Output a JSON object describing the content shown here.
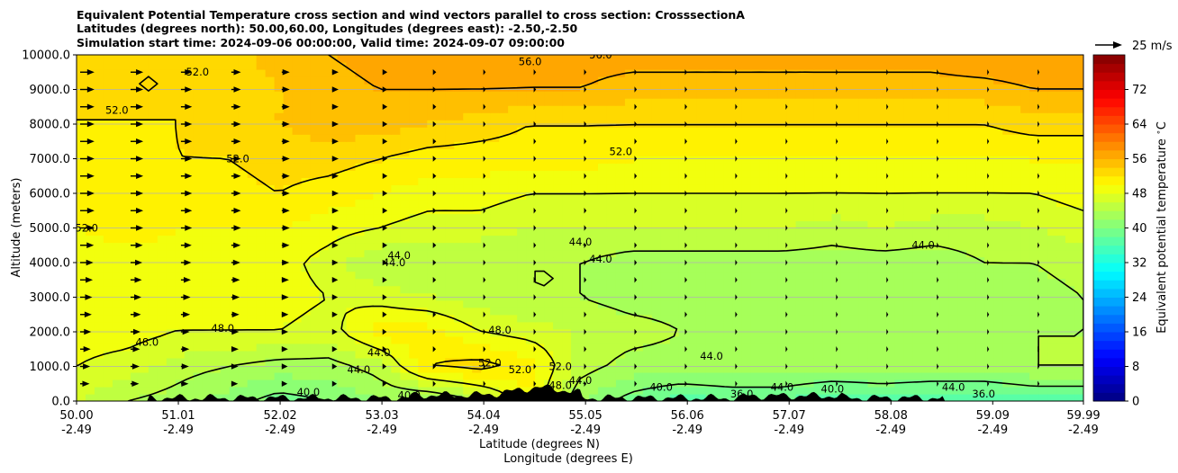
{
  "chart_data": {
    "type": "heatmap",
    "title_lines": [
      "Equivalent Potential Temperature cross section and wind vectors parallel to cross section: CrosssectionA",
      "Latitudes (degrees north): 50.00,60.00, Longitudes (degrees east): -2.50,-2.50",
      "Simulation start time: 2024-09-06 00:00:00, Valid time: 2024-09-07 09:00:00"
    ],
    "ylabel": "Altitude (meters)",
    "xlabel_lines": [
      "Latitude (degrees N)",
      "Longitude (degrees E)"
    ],
    "xlim": [
      50.0,
      59.99
    ],
    "ylim": [
      0,
      10000
    ],
    "grid": "horizontal",
    "x_ticks": [
      {
        "lat": "50.00",
        "lon": "-2.49",
        "v": 50.0
      },
      {
        "lat": "51.01",
        "lon": "-2.49",
        "v": 51.01
      },
      {
        "lat": "52.02",
        "lon": "-2.49",
        "v": 52.02
      },
      {
        "lat": "53.03",
        "lon": "-2.49",
        "v": 53.03
      },
      {
        "lat": "54.04",
        "lon": "-2.49",
        "v": 54.04
      },
      {
        "lat": "55.05",
        "lon": "-2.49",
        "v": 55.05
      },
      {
        "lat": "56.06",
        "lon": "-2.49",
        "v": 56.06
      },
      {
        "lat": "57.07",
        "lon": "-2.49",
        "v": 57.07
      },
      {
        "lat": "58.08",
        "lon": "-2.49",
        "v": 58.08
      },
      {
        "lat": "59.09",
        "lon": "-2.49",
        "v": 59.09
      },
      {
        "lat": "59.99",
        "lon": "-2.49",
        "v": 59.99
      }
    ],
    "y_ticks": [
      {
        "label": "0.0",
        "v": 0
      },
      {
        "label": "1000.0",
        "v": 1000
      },
      {
        "label": "2000.0",
        "v": 2000
      },
      {
        "label": "3000.0",
        "v": 3000
      },
      {
        "label": "4000.0",
        "v": 4000
      },
      {
        "label": "5000.0",
        "v": 5000
      },
      {
        "label": "6000.0",
        "v": 6000
      },
      {
        "label": "7000.0",
        "v": 7000
      },
      {
        "label": "8000.0",
        "v": 8000
      },
      {
        "label": "9000.0",
        "v": 9000
      },
      {
        "label": "10000.0",
        "v": 10000
      }
    ],
    "colorbar": {
      "label": "Equivalent potential temperature $^\\circ$C",
      "range": [
        0,
        80
      ],
      "ticks": [
        {
          "label": "0",
          "v": 0
        },
        {
          "label": "8",
          "v": 8
        },
        {
          "label": "16",
          "v": 16
        },
        {
          "label": "24",
          "v": 24
        },
        {
          "label": "32",
          "v": 32
        },
        {
          "label": "40",
          "v": 40
        },
        {
          "label": "48",
          "v": 48
        },
        {
          "label": "56",
          "v": 56
        },
        {
          "label": "64",
          "v": 64
        },
        {
          "label": "72",
          "v": 72
        }
      ],
      "colormap": "jet"
    },
    "quiver_key": {
      "label": "25 m/s",
      "speed": 25
    },
    "theta_e_field": {
      "x": [
        50.0,
        50.5,
        51.0,
        51.5,
        52.0,
        52.5,
        53.0,
        53.5,
        54.0,
        54.5,
        55.0,
        55.5,
        56.0,
        56.5,
        57.0,
        57.5,
        58.0,
        58.5,
        59.0,
        59.5,
        59.99
      ],
      "z": [
        0,
        1000,
        2000,
        3000,
        4000,
        5000,
        6000,
        7000,
        8000,
        9000,
        10000
      ],
      "values": [
        [
          46,
          44,
          43,
          41,
          39,
          40,
          42,
          41,
          44,
          50,
          42,
          39,
          37,
          38,
          38,
          36,
          37,
          36,
          36,
          37,
          37
        ],
        [
          48,
          47,
          45,
          44,
          43,
          43,
          45,
          52,
          53,
          51,
          45,
          43,
          43,
          43,
          43,
          43,
          43,
          43,
          43,
          44,
          44
        ],
        [
          49,
          49,
          48,
          48,
          48,
          47,
          51,
          51,
          48,
          47,
          46,
          45,
          44,
          43,
          43,
          43,
          43,
          44,
          44,
          44,
          44
        ],
        [
          49,
          49,
          49,
          49,
          49,
          48,
          47,
          46,
          45,
          44,
          44,
          43,
          43,
          42,
          42,
          42,
          42,
          42,
          43,
          43,
          44
        ],
        [
          49,
          49,
          49,
          49,
          49,
          47,
          44,
          44,
          44,
          44,
          44,
          43,
          43,
          43,
          43,
          43,
          43,
          43,
          44,
          44,
          45
        ],
        [
          50,
          51,
          50,
          50,
          50,
          49,
          48,
          47,
          47,
          46,
          46,
          46,
          46,
          46,
          46,
          45,
          46,
          45,
          45,
          46,
          47
        ],
        [
          51,
          51,
          51,
          51,
          52,
          51,
          50,
          49,
          49,
          48,
          48,
          48,
          48,
          48,
          48,
          48,
          48,
          48,
          48,
          48,
          49
        ],
        [
          51,
          51,
          52,
          52,
          53,
          53,
          52,
          51,
          51,
          51,
          51,
          50,
          50,
          50,
          50,
          50,
          50,
          50,
          50,
          50,
          50
        ],
        [
          52,
          52,
          52,
          53,
          54,
          55,
          55,
          54,
          53,
          52,
          52,
          52,
          52,
          52,
          52,
          52,
          52,
          52,
          52,
          53,
          53
        ],
        [
          52,
          52,
          52,
          52,
          54,
          55,
          56,
          56,
          56,
          56,
          56,
          55,
          55,
          55,
          55,
          55,
          55,
          55,
          55,
          56,
          56
        ],
        [
          52,
          52,
          52,
          53,
          55,
          56,
          57,
          58,
          58,
          57,
          57,
          57,
          57,
          57,
          57,
          57,
          57,
          57,
          58,
          58,
          58
        ]
      ]
    },
    "contour_levels": [
      36,
      40,
      44,
      48,
      52,
      56
    ],
    "contour_labels": [
      {
        "text": "56.0",
        "x": 54.5,
        "z": 9700
      },
      {
        "text": "56.0",
        "x": 55.2,
        "z": 9900
      },
      {
        "text": "52.0",
        "x": 51.2,
        "z": 9400
      },
      {
        "text": "52.0",
        "x": 50.4,
        "z": 8300
      },
      {
        "text": "52.0",
        "x": 51.6,
        "z": 6900
      },
      {
        "text": "52.0",
        "x": 55.4,
        "z": 7100
      },
      {
        "text": "52.0",
        "x": 50.1,
        "z": 4900
      },
      {
        "text": "44.0",
        "x": 53.2,
        "z": 4100
      },
      {
        "text": "44.0",
        "x": 53.15,
        "z": 3900
      },
      {
        "text": "44.0",
        "x": 55.0,
        "z": 4500
      },
      {
        "text": "44.0",
        "x": 55.2,
        "z": 4000
      },
      {
        "text": "44.0",
        "x": 58.4,
        "z": 4400
      },
      {
        "text": "48.0",
        "x": 50.7,
        "z": 1600
      },
      {
        "text": "48.0",
        "x": 51.45,
        "z": 2000
      },
      {
        "text": "48.0",
        "x": 54.2,
        "z": 1950
      },
      {
        "text": "52.0",
        "x": 54.1,
        "z": 1000
      },
      {
        "text": "52.0",
        "x": 54.4,
        "z": 800
      },
      {
        "text": "52.0",
        "x": 54.8,
        "z": 900
      },
      {
        "text": "44.0",
        "x": 56.3,
        "z": 1200
      },
      {
        "text": "44.0",
        "x": 52.8,
        "z": 800
      },
      {
        "text": "44.0",
        "x": 53.0,
        "z": 1300
      },
      {
        "text": "44.0",
        "x": 55.0,
        "z": 500
      },
      {
        "text": "44.0",
        "x": 57.0,
        "z": 300
      },
      {
        "text": "44.0",
        "x": 58.7,
        "z": 300
      },
      {
        "text": "40.0",
        "x": 52.3,
        "z": 150
      },
      {
        "text": "40.0",
        "x": 53.3,
        "z": 60
      },
      {
        "text": "40.0",
        "x": 55.8,
        "z": 300
      },
      {
        "text": "40.0",
        "x": 57.5,
        "z": 250
      },
      {
        "text": "36.0",
        "x": 56.6,
        "z": 100
      },
      {
        "text": "36.0",
        "x": 59.0,
        "z": 100
      },
      {
        "text": "48.0",
        "x": 54.8,
        "z": 350
      }
    ],
    "wind_vectors": {
      "u_ms_by_level": {
        "z": [
          500,
          1000,
          1500,
          2000,
          2500,
          3000,
          3500,
          4000,
          4500,
          5000,
          5500,
          6000,
          6500,
          7000,
          7500,
          8000,
          8500,
          9000,
          9500
        ],
        "x": [
          50.0,
          50.5,
          51.0,
          51.5,
          52.0,
          52.5,
          53.0,
          53.5,
          54.0,
          54.5,
          55.0,
          55.5,
          56.0,
          56.5,
          57.0,
          57.5,
          58.0,
          58.5,
          59.0,
          59.5
        ],
        "u_peak": 18,
        "u_min": 3
      }
    },
    "terrain_max_m": 600
  }
}
